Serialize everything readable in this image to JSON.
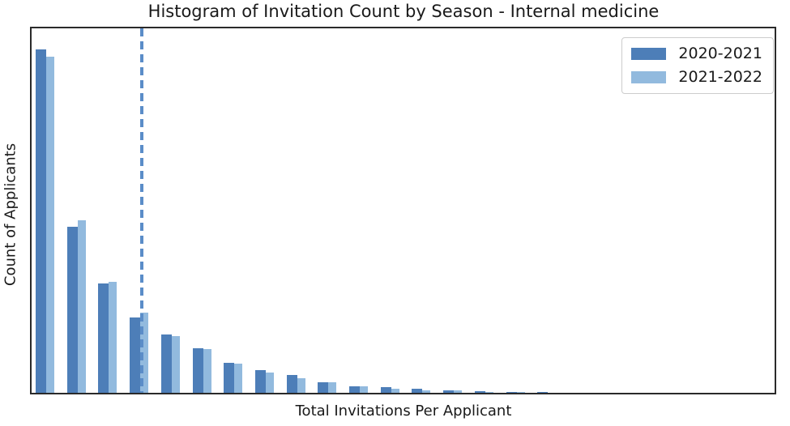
{
  "chart_data": {
    "type": "bar",
    "subtype": "histogram-grouped",
    "title": "Histogram of Invitation Count by Season - Internal medicine",
    "xlabel": "Total Invitations Per Applicant",
    "ylabel": "Count of Applicants",
    "bin_index": [
      1,
      2,
      3,
      4,
      5,
      6,
      7,
      8,
      9,
      10,
      11,
      12,
      13,
      14,
      15,
      16,
      17
    ],
    "series": [
      {
        "name": "2020-2021",
        "color": "#4d7eb8",
        "values": [
          428,
          207,
          136,
          94,
          73,
          55,
          37,
          28,
          22,
          13,
          8,
          7,
          5,
          3,
          2,
          1,
          1
        ]
      },
      {
        "name": "2021-2022",
        "color": "#92bade",
        "values": [
          419,
          215,
          138,
          100,
          71,
          54,
          36,
          25,
          18,
          13,
          8,
          5,
          3,
          3,
          1,
          1,
          0
        ]
      }
    ],
    "ylim": [
      0,
      454
    ],
    "x_tick_labels_visible": false,
    "y_tick_labels_visible": false,
    "grid": false,
    "legend_position": "upper right",
    "vline": {
      "orientation": "vertical",
      "style": "dashed",
      "color": "#5b8dc8",
      "x_fraction_of_plot_width": 0.148
    }
  },
  "legend": {
    "entries": [
      {
        "label": "2020-2021",
        "color": "#4d7eb8"
      },
      {
        "label": "2021-2022",
        "color": "#92bade"
      }
    ]
  },
  "colors": {
    "series_dark": "#4d7eb8",
    "series_light": "#92bade",
    "dashed_line": "#5b8dc8",
    "spine": "#2a2a2a",
    "text": "#1a1a1a",
    "background": "#ffffff",
    "legend_border": "#cccccc"
  }
}
